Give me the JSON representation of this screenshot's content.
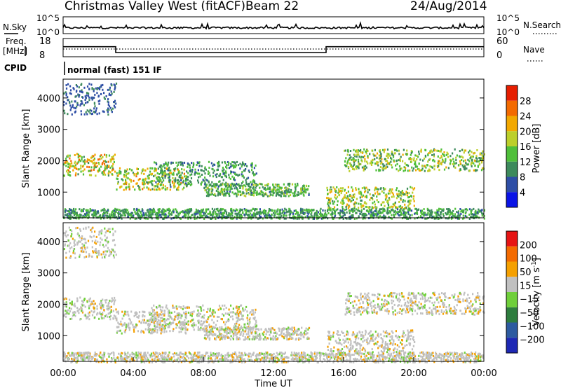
{
  "header": {
    "station": "Christmas Valley West (fitACF)",
    "beam": "Beam 22",
    "date": "24/Aug/2014"
  },
  "panels": {
    "nsky_label": "N.Sky",
    "nsky_ticks": [
      "10^5",
      "10^0"
    ],
    "nsearch_label": "N.Search",
    "nsearch_ticks": [
      "10^5",
      "10^0"
    ],
    "freq_label": "Freq.",
    "freq_unit": "[MHz]",
    "freq_ticks": [
      "18",
      "8"
    ],
    "nave_label": "Nave",
    "nave_ticks": [
      "60",
      "0"
    ],
    "cpid_label": "CPID",
    "cpid_text": "normal (fast) 151 IF"
  },
  "colors": {
    "power": [
      "#0a14e6",
      "#2e4ea6",
      "#3d8a5c",
      "#4fbf3a",
      "#bccf2a",
      "#f2a800",
      "#f36a00",
      "#e61e00"
    ],
    "velocity": [
      "#1e28b4",
      "#2d5ba0",
      "#2e7d3e",
      "#6fcf3a",
      "#c0c0c0",
      "#f5a000",
      "#f36a00",
      "#e61414"
    ]
  },
  "chart_data": [
    {
      "type": "line",
      "x_ticks": [
        "00:00",
        "04:00",
        "08:00",
        "12:00",
        "16:00",
        "20:00",
        "00:00"
      ],
      "xlim_hours": [
        0,
        24
      ],
      "frequency_series": {
        "x": [
          0,
          3.0,
          3.0,
          15.0,
          15.0,
          24
        ],
        "values": [
          13.5,
          13.5,
          10.3,
          10.3,
          13.5,
          13.5
        ]
      },
      "freq_ylim": [
        8,
        18
      ],
      "nave_ylim": [
        0,
        60
      ]
    },
    {
      "type": "heatmap",
      "quantity": "Power",
      "ylabel": "Slant Range [km]",
      "ylim": [
        180,
        4600
      ],
      "y_ticks": [
        "4000",
        "3000",
        "2000",
        "1000"
      ],
      "colorbar_label": "Power [dB]",
      "colorbar_ticks": [
        "28",
        "24",
        "20",
        "16",
        "12",
        "8",
        "4"
      ],
      "colorbar_range": [
        0,
        32
      ],
      "scatter_bands": [
        {
          "x": [
            0,
            3
          ],
          "range_km": [
            1550,
            2250
          ],
          "peak_db": 26
        },
        {
          "x": [
            3,
            7
          ],
          "range_km": [
            1100,
            1800
          ],
          "peak_db": 24
        },
        {
          "x": [
            5,
            11
          ],
          "range_km": [
            1200,
            2000
          ],
          "peak_db": 14
        },
        {
          "x": [
            8,
            14
          ],
          "range_km": [
            900,
            1300
          ],
          "peak_db": 16
        },
        {
          "x": [
            15,
            20
          ],
          "range_km": [
            500,
            1200
          ],
          "peak_db": 22
        },
        {
          "x": [
            16,
            24
          ],
          "range_km": [
            1700,
            2400
          ],
          "peak_db": 20
        },
        {
          "x": [
            0,
            24
          ],
          "range_km": [
            180,
            500
          ],
          "peak_db": 14
        },
        {
          "x": [
            0,
            3
          ],
          "range_km": [
            3500,
            4500
          ],
          "peak_db": 8
        }
      ]
    },
    {
      "type": "heatmap",
      "quantity": "Velocity",
      "ylabel": "Slant Range [km]",
      "ylim": [
        180,
        4600
      ],
      "y_ticks": [
        "4000",
        "3000",
        "2000",
        "1000"
      ],
      "xlabel": "Time UT",
      "colorbar_label": "Velocity [m s^-1]",
      "colorbar_ticks": [
        "200",
        "100",
        "50",
        "15",
        "−15",
        "−50",
        "−100",
        "−200"
      ],
      "colorbar_range": [
        -250,
        250
      ]
    }
  ]
}
